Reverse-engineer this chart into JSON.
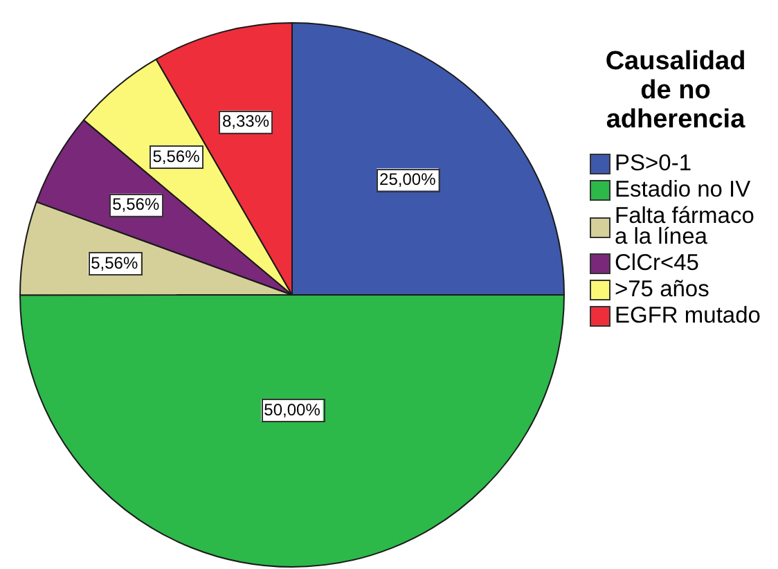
{
  "chart_data": {
    "type": "pie",
    "legend_title": "Causalidad de no adherencia",
    "categories": [
      "PS>0-1",
      "Estadio no IV",
      "Falta fármaco a la línea",
      "ClCr<45",
      ">75 años",
      "EGFR mutado"
    ],
    "values": [
      25,
      50,
      5.56,
      5.56,
      5.56,
      8.33
    ],
    "colors": [
      "#3e58ac",
      "#2db84a",
      "#d5cf9a",
      "#79287a",
      "#fbf877",
      "#ef2e3b"
    ],
    "value_labels": [
      "25,00%",
      "50,00%",
      "5,56%",
      "5,56%",
      "5,56%",
      "8,33%"
    ],
    "legend": "right"
  }
}
